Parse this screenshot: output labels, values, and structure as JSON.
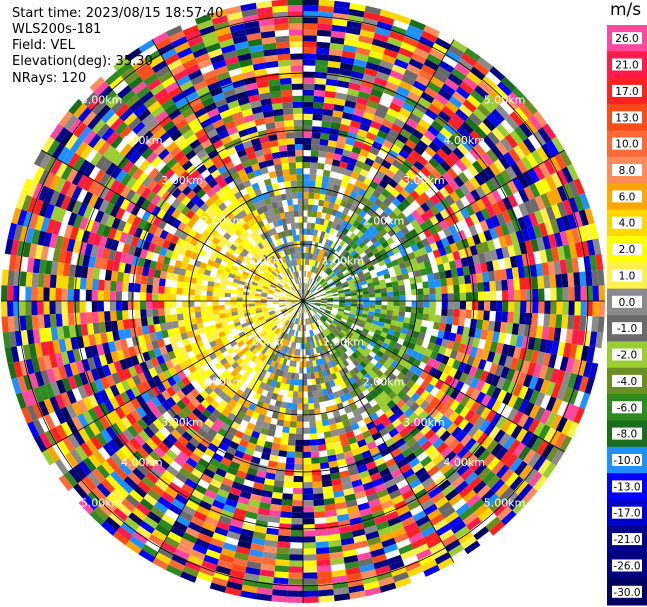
{
  "header": {
    "start_time": "Start time: 2023/08/15 18:57:40",
    "instrument": "WLS200s-181",
    "field": "Field: VEL",
    "elevation": "Elevation(deg): 35.30",
    "nrays": "NRays: 120"
  },
  "chart_data": {
    "type": "heatmap",
    "projection": "polar-ppi",
    "field": "VEL",
    "units": "m/s",
    "range_rings_km": [
      1.0,
      2.0,
      3.0,
      4.0,
      5.0
    ],
    "range_ring_labels": [
      "1.00km",
      "2.00km",
      "3.00km",
      "4.00km",
      "5.00km"
    ],
    "max_range_km": 5.3,
    "n_rays": 120,
    "colorbar": {
      "unit": "m/s",
      "tick_labels": [
        "26.0",
        "21.0",
        "17.0",
        "13.0",
        "10.0",
        "8.0",
        "6.0",
        "4.0",
        "2.0",
        "1.0",
        "0.0",
        "-1.0",
        "-2.0",
        "-4.0",
        "-6.0",
        "-8.0",
        "-10.0",
        "-13.0",
        "-17.0",
        "-21.0",
        "-26.0",
        "-30.0"
      ],
      "colors": [
        "#ff49a0",
        "#ff1a4a",
        "#ff2020",
        "#ff4a1a",
        "#ff6a3a",
        "#ff8c5a",
        "#ffa500",
        "#ffd700",
        "#ffff00",
        "#fff04a",
        "#8a8a8a",
        "#6a6a6a",
        "#9acd32",
        "#6b8e23",
        "#2e8b22",
        "#1a6e1a",
        "#1e90ff",
        "#0000ff",
        "#0000cd",
        "#00008b",
        "#000080",
        "#000060"
      ]
    }
  }
}
